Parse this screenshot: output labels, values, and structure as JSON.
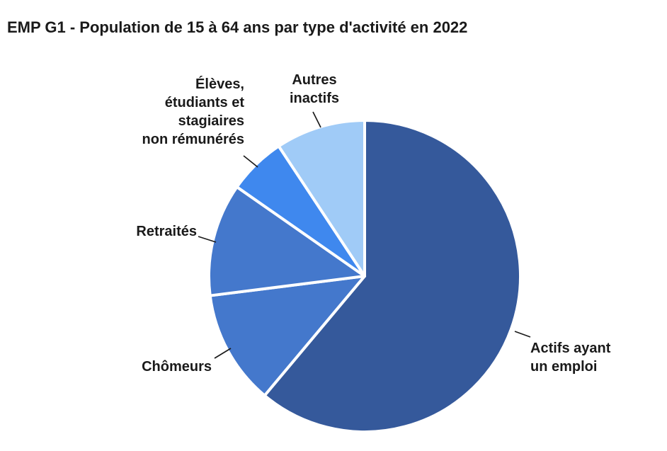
{
  "title": "EMP G1 - Population de 15 à 64 ans par type d'activité en 2022",
  "chart_data": {
    "type": "pie",
    "title": "EMP G1 - Population de 15 à 64 ans par type d'activité en 2022",
    "categories": [
      "Actifs ayant un emploi",
      "Chômeurs",
      "Retraités",
      "Élèves, étudiants et stagiaires non rémunérés",
      "Autres inactifs"
    ],
    "values": [
      61.1,
      11.9,
      11.7,
      6.0,
      9.3
    ],
    "unit": "% (estimated from slice angles, no numeric labels shown)",
    "colors": [
      "#35599B",
      "#4478CC",
      "#4478CC",
      "#3F88EE",
      "#A0CBF7"
    ],
    "slice_divider_color": "#ffffff",
    "start_angle_deg": 0,
    "direction": "clockwise",
    "legend": "none — direct labels with black leader lines",
    "background": "#ffffff",
    "text_color": "#1a1a1a"
  },
  "labels": {
    "actifs": "Actifs ayant\nun emploi",
    "chomeurs": "Chômeurs",
    "retraites": "Retraités",
    "eleves": "Élèves,\nétudiants et\nstagiaires\nnon rémunérés",
    "autres": "Autres\ninactifs"
  }
}
